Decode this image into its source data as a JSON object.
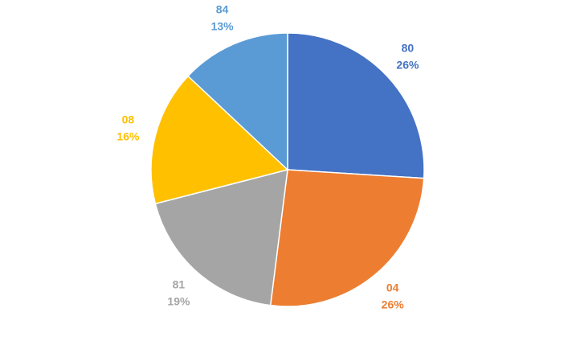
{
  "chart_data": {
    "type": "pie",
    "categories": [
      "80",
      "04",
      "81",
      "08",
      "84"
    ],
    "values": [
      26,
      26,
      19,
      16,
      13
    ],
    "value_labels": [
      "26%",
      "26%",
      "19%",
      "16%",
      "13%"
    ],
    "colors": [
      "#4472c4",
      "#ed7d31",
      "#a5a5a5",
      "#ffc000",
      "#5b9bd5"
    ]
  }
}
